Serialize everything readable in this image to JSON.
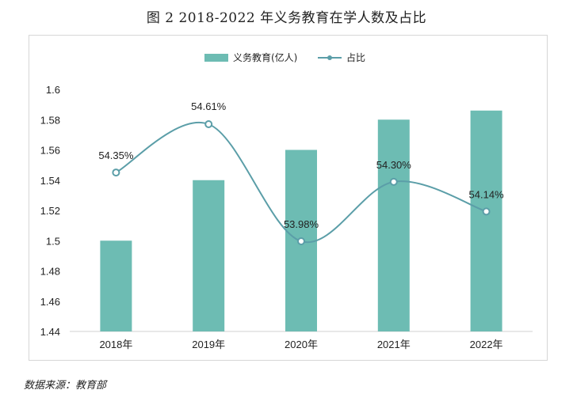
{
  "title": "图 2 2018-2022 年义务教育在学人数及占比",
  "source": "数据来源：教育部",
  "colors": {
    "bar": "#6dbcb3",
    "line": "#5b9ea8",
    "marker_fill": "#ffffff"
  },
  "chart_data": {
    "type": "bar",
    "categories": [
      "2018年",
      "2019年",
      "2020年",
      "2021年",
      "2022年"
    ],
    "ylim": [
      1.44,
      1.6
    ],
    "yticks": [
      "1.44",
      "1.46",
      "1.48",
      "1.5",
      "1.52",
      "1.54",
      "1.56",
      "1.58",
      "1.6"
    ],
    "grid": false,
    "legend": "top-center",
    "series": [
      {
        "name": "义务教育(亿人)",
        "type": "bar",
        "values": [
          1.5,
          1.54,
          1.56,
          1.58,
          1.586
        ]
      },
      {
        "name": "占比",
        "type": "line",
        "smooth": true,
        "values": [
          54.35,
          54.61,
          53.98,
          54.3,
          54.14
        ],
        "labels": [
          "54.35%",
          "54.61%",
          "53.98%",
          "54.30%",
          "54.14%"
        ]
      }
    ]
  }
}
